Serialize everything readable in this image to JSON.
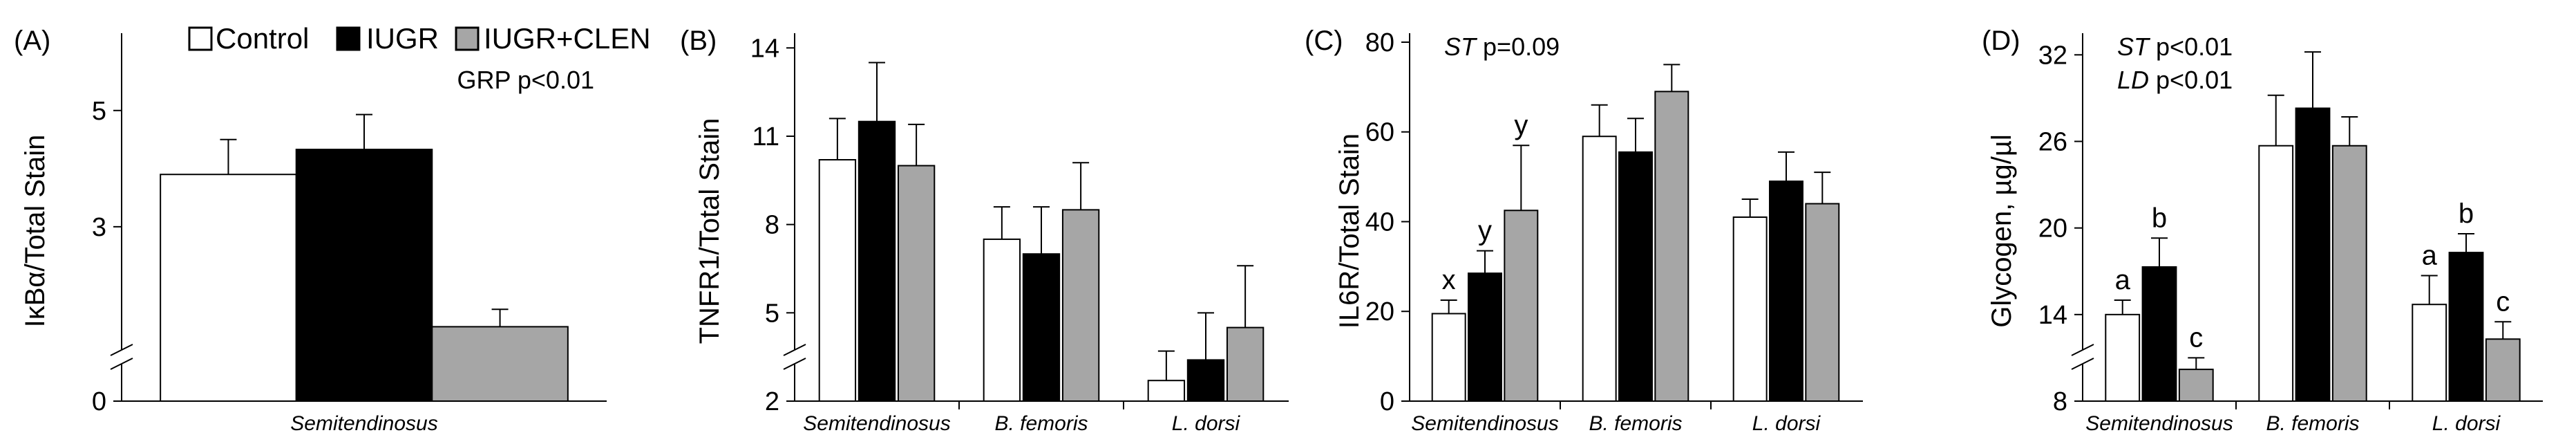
{
  "legend": {
    "entries": [
      {
        "label": "Control",
        "color": "#ffffff"
      },
      {
        "label": "IUGR",
        "color": "#000000"
      },
      {
        "label": "IUGR+CLEN",
        "color": "#a6a6a6"
      }
    ]
  },
  "chart_data": [
    {
      "type": "bar",
      "panel": "(A)",
      "ylabel": "IκBα/Total Stain",
      "yticks": [
        0,
        3,
        5
      ],
      "ylim": [
        0,
        6.33
      ],
      "axis_break": true,
      "categories": [
        "Semitendinosus"
      ],
      "series": [
        {
          "name": "Control",
          "values": [
            3.9
          ],
          "errors": [
            0.6
          ]
        },
        {
          "name": "IUGR",
          "values": [
            4.33
          ],
          "errors": [
            0.6
          ]
        },
        {
          "name": "IUGR+CLEN",
          "values": [
            1.28
          ],
          "errors": [
            0.3
          ]
        }
      ],
      "annotations": [
        {
          "text": "GRP p<0.01",
          "anchor": "top-right"
        }
      ],
      "significance": []
    },
    {
      "type": "bar",
      "panel": "(B)",
      "ylabel": "TNFR1/Total Stain",
      "yticks": [
        2,
        5,
        8,
        11,
        14
      ],
      "ylim": [
        2,
        14.5
      ],
      "axis_break": true,
      "categories": [
        "Semitendinosus",
        "B. femoris",
        "L. dorsi"
      ],
      "series": [
        {
          "name": "Control",
          "values": [
            10.2,
            7.5,
            2.7
          ],
          "errors": [
            1.4,
            1.1,
            1.0
          ]
        },
        {
          "name": "IUGR",
          "values": [
            11.5,
            7.0,
            3.4
          ],
          "errors": [
            2.0,
            1.6,
            1.6
          ]
        },
        {
          "name": "IUGR+CLEN",
          "values": [
            10.0,
            8.5,
            4.5
          ],
          "errors": [
            1.4,
            1.6,
            2.1
          ]
        }
      ],
      "annotations": [],
      "significance": []
    },
    {
      "type": "bar",
      "panel": "(C)",
      "ylabel": "IL6R/Total Stain",
      "yticks": [
        0,
        20,
        40,
        60,
        80
      ],
      "ylim": [
        0,
        82
      ],
      "axis_break": false,
      "categories": [
        "Semitendinosus",
        "B. femoris",
        "L. dorsi"
      ],
      "series": [
        {
          "name": "Control",
          "values": [
            19.5,
            59,
            41
          ],
          "errors": [
            3,
            7,
            4
          ]
        },
        {
          "name": "IUGR",
          "values": [
            28.5,
            55.5,
            49
          ],
          "errors": [
            5,
            7.5,
            6.5
          ]
        },
        {
          "name": "IUGR+CLEN",
          "values": [
            42.5,
            69,
            44
          ],
          "errors": [
            14.5,
            6,
            7
          ]
        }
      ],
      "annotations": [
        {
          "label": "ST",
          "text": " p=0.09",
          "anchor": "top-left"
        }
      ],
      "significance": [
        {
          "category": 0,
          "series": 0,
          "letter": "x"
        },
        {
          "category": 0,
          "series": 1,
          "letter": "y"
        },
        {
          "category": 0,
          "series": 2,
          "letter": "y"
        }
      ]
    },
    {
      "type": "bar",
      "panel": "(D)",
      "ylabel": "Glycogen, µg/µl",
      "yticks": [
        8,
        14,
        20,
        26,
        32
      ],
      "ylim": [
        8,
        33.5
      ],
      "axis_break": true,
      "categories": [
        "Semitendinosus",
        "B. femoris",
        "L. dorsi"
      ],
      "series": [
        {
          "name": "Control",
          "values": [
            14.0,
            25.7,
            14.7
          ],
          "errors": [
            1.0,
            3.5,
            2.0
          ]
        },
        {
          "name": "IUGR",
          "values": [
            17.3,
            28.3,
            18.3
          ],
          "errors": [
            2.0,
            3.9,
            1.3
          ]
        },
        {
          "name": "IUGR+CLEN",
          "values": [
            10.2,
            25.7,
            12.3
          ],
          "errors": [
            0.8,
            2.0,
            1.2
          ]
        }
      ],
      "annotations": [
        {
          "label": "ST",
          "text": " p<0.01",
          "anchor": "top-left"
        },
        {
          "label": "LD",
          "text": " p<0.01",
          "anchor": "top-left"
        }
      ],
      "significance": [
        {
          "category": 0,
          "series": 0,
          "letter": "a"
        },
        {
          "category": 0,
          "series": 1,
          "letter": "b"
        },
        {
          "category": 0,
          "series": 2,
          "letter": "c"
        },
        {
          "category": 2,
          "series": 0,
          "letter": "a"
        },
        {
          "category": 2,
          "series": 1,
          "letter": "b"
        },
        {
          "category": 2,
          "series": 2,
          "letter": "c"
        }
      ]
    }
  ]
}
